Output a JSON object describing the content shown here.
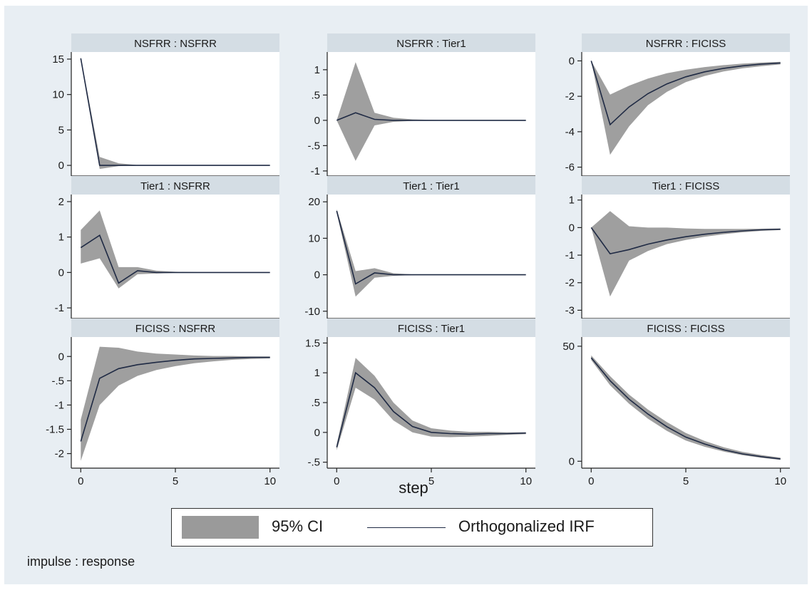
{
  "chart_data": {
    "type": "line",
    "note": "impulse : response",
    "xlabel": "step",
    "legend": {
      "position": "bottom",
      "ci_label": "95% CI",
      "line_label": "Orthogonalized IRF"
    },
    "colors": {
      "ci": "#9a9a9a",
      "line": "#1f2a44",
      "title_strip": "#d4dde4",
      "background": "#e8eef3"
    },
    "x": [
      0,
      1,
      2,
      3,
      4,
      5,
      6,
      7,
      8,
      9,
      10
    ],
    "xticks": [
      0,
      5,
      10
    ],
    "panels": [
      {
        "title": "NSFRR : NSFRR",
        "ylim": [
          -1.5,
          16
        ],
        "yticks": [
          0,
          5,
          10,
          15
        ],
        "yticklabels": [
          "0",
          "5",
          "10",
          "15"
        ],
        "irf": [
          15.1,
          0,
          0,
          0,
          0,
          0,
          0,
          0,
          0,
          0,
          0
        ],
        "lower": [
          14.9,
          -0.5,
          -0.1,
          0,
          0,
          0,
          0,
          0,
          0,
          0,
          0
        ],
        "upper": [
          15.3,
          1.2,
          0.3,
          0.05,
          0,
          0,
          0,
          0,
          0,
          0,
          0
        ]
      },
      {
        "title": "NSFRR : Tier1",
        "ylim": [
          -1.1,
          1.35
        ],
        "yticks": [
          -1,
          -0.5,
          0,
          0.5,
          1
        ],
        "yticklabels": [
          "-1",
          "-.5",
          "0",
          ".5",
          "1"
        ],
        "irf": [
          0,
          0.15,
          0.02,
          0,
          0,
          0,
          0,
          0,
          0,
          0,
          0
        ],
        "lower": [
          0,
          -0.8,
          -0.1,
          -0.03,
          -0.01,
          0,
          0,
          0,
          0,
          0,
          0
        ],
        "upper": [
          0,
          1.15,
          0.15,
          0.05,
          0.02,
          0.01,
          0,
          0,
          0,
          0,
          0
        ]
      },
      {
        "title": "NSFRR : FICISS",
        "ylim": [
          -6.5,
          0.5
        ],
        "yticks": [
          -6,
          -4,
          -2,
          0
        ],
        "yticklabels": [
          "-6",
          "-4",
          "-2",
          "0"
        ],
        "irf": [
          0,
          -3.6,
          -2.6,
          -1.85,
          -1.3,
          -0.9,
          -0.62,
          -0.42,
          -0.28,
          -0.18,
          -0.12
        ],
        "lower": [
          0,
          -5.3,
          -3.7,
          -2.5,
          -1.75,
          -1.2,
          -0.85,
          -0.6,
          -0.42,
          -0.3,
          -0.2
        ],
        "upper": [
          0,
          -1.9,
          -1.4,
          -1.0,
          -0.7,
          -0.5,
          -0.35,
          -0.24,
          -0.15,
          -0.09,
          -0.05
        ]
      },
      {
        "title": "Tier1 : NSFRR",
        "ylim": [
          -1.3,
          2.2
        ],
        "yticks": [
          -1,
          0,
          1,
          2
        ],
        "yticklabels": [
          "-1",
          "0",
          "1",
          "2"
        ],
        "irf": [
          0.7,
          1.05,
          -0.3,
          0.05,
          0,
          0,
          0,
          0,
          0,
          0,
          0
        ],
        "lower": [
          0.25,
          0.4,
          -0.45,
          -0.05,
          -0.03,
          -0.01,
          0,
          0,
          0,
          0,
          0
        ],
        "upper": [
          1.2,
          1.75,
          0.15,
          0.15,
          0.05,
          0.02,
          0.01,
          0,
          0,
          0,
          0
        ]
      },
      {
        "title": "Tier1 : Tier1",
        "ylim": [
          -12,
          22
        ],
        "yticks": [
          -10,
          0,
          10,
          20
        ],
        "yticklabels": [
          "-10",
          "0",
          "10",
          "20"
        ],
        "irf": [
          17.5,
          -2.5,
          0.5,
          0,
          0,
          0,
          0,
          0,
          0,
          0,
          0
        ],
        "lower": [
          17,
          -6,
          -0.8,
          -0.3,
          -0.1,
          0,
          0,
          0,
          0,
          0,
          0
        ],
        "upper": [
          18,
          1.0,
          1.8,
          0.4,
          0.1,
          0,
          0,
          0,
          0,
          0,
          0
        ]
      },
      {
        "title": "Tier1 : FICISS",
        "ylim": [
          -3.3,
          1.2
        ],
        "yticks": [
          -3,
          -2,
          -1,
          0,
          1
        ],
        "yticklabels": [
          "-3",
          "-2",
          "-1",
          "0",
          "1"
        ],
        "irf": [
          0,
          -0.95,
          -0.8,
          -0.6,
          -0.45,
          -0.33,
          -0.24,
          -0.17,
          -0.12,
          -0.08,
          -0.06
        ],
        "lower": [
          0,
          -2.5,
          -1.2,
          -0.85,
          -0.6,
          -0.45,
          -0.33,
          -0.24,
          -0.17,
          -0.12,
          -0.09
        ],
        "upper": [
          0,
          0.6,
          0.05,
          0,
          0,
          -0.03,
          -0.05,
          -0.05,
          -0.05,
          -0.04,
          -0.03
        ]
      },
      {
        "title": "FICISS : NSFRR",
        "ylim": [
          -2.3,
          0.4
        ],
        "yticks": [
          -2,
          -1.5,
          -1,
          -0.5,
          0
        ],
        "yticklabels": [
          "-2",
          "-1.5",
          "-1",
          "-.5",
          "0"
        ],
        "irf": [
          -1.75,
          -0.45,
          -0.25,
          -0.17,
          -0.12,
          -0.08,
          -0.05,
          -0.04,
          -0.03,
          -0.02,
          -0.02
        ],
        "lower": [
          -2.15,
          -1.0,
          -0.6,
          -0.4,
          -0.28,
          -0.2,
          -0.14,
          -0.1,
          -0.07,
          -0.05,
          -0.04
        ],
        "upper": [
          -1.3,
          0.2,
          0.18,
          0.1,
          0.06,
          0.04,
          0.02,
          0.01,
          0.01,
          0,
          0
        ]
      },
      {
        "title": "FICISS : Tier1",
        "ylim": [
          -0.6,
          1.6
        ],
        "yticks": [
          -0.5,
          0,
          0.5,
          1,
          1.5
        ],
        "yticklabels": [
          "-.5",
          "0",
          ".5",
          "1",
          "1.5"
        ],
        "irf": [
          -0.25,
          1.0,
          0.75,
          0.35,
          0.1,
          0,
          -0.02,
          -0.03,
          -0.02,
          -0.02,
          -0.01
        ],
        "lower": [
          -0.3,
          0.75,
          0.55,
          0.2,
          0.0,
          -0.07,
          -0.08,
          -0.07,
          -0.06,
          -0.04,
          -0.03
        ],
        "upper": [
          -0.2,
          1.25,
          0.95,
          0.5,
          0.2,
          0.07,
          0.03,
          0.01,
          0.01,
          0,
          0
        ]
      },
      {
        "title": "FICISS : FICISS",
        "ylim": [
          -3,
          54
        ],
        "yticks": [
          0,
          50
        ],
        "yticklabels": [
          "0",
          "50"
        ],
        "irf": [
          45,
          35,
          27,
          20.5,
          15,
          10.5,
          7.5,
          5,
          3.2,
          2,
          1
        ],
        "lower": [
          44,
          33,
          25,
          18.5,
          13.2,
          9,
          6.3,
          4.2,
          2.6,
          1.5,
          0.6
        ],
        "upper": [
          46,
          37,
          29,
          22.5,
          17,
          12.3,
          8.8,
          6.1,
          4.1,
          2.7,
          1.6
        ]
      }
    ]
  }
}
